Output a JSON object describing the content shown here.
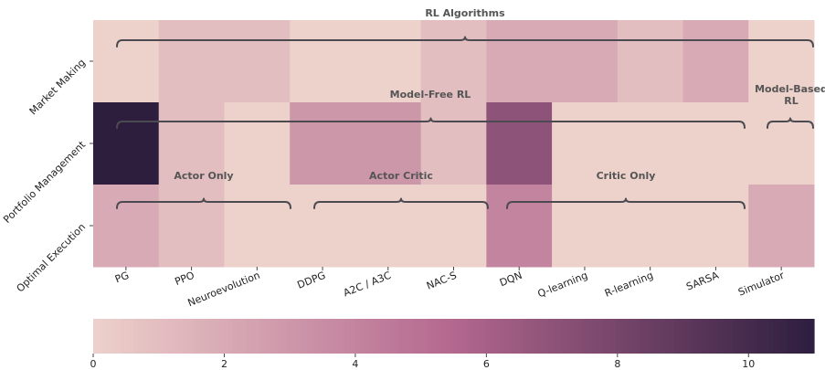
{
  "chart_data": {
    "type": "heatmap",
    "columns": [
      "PG",
      "PPO",
      "Neuroevolution",
      "DDPG",
      "A2C / A3C",
      "NAC-S",
      "DQN",
      "Q-learning",
      "R-learning",
      "SARSA",
      "Simulator"
    ],
    "rows": [
      "Market Making",
      "Portfolio Management",
      "Optimal Execution"
    ],
    "values": [
      [
        0,
        1,
        1,
        0,
        0,
        1,
        2,
        2,
        1,
        2,
        0
      ],
      [
        11,
        1,
        0,
        3,
        3,
        1,
        7,
        0,
        0,
        0,
        0
      ],
      [
        2,
        1,
        0,
        0,
        0,
        0,
        4,
        0,
        0,
        0,
        2
      ]
    ],
    "colorbar": {
      "min": 0,
      "max": 11,
      "ticks": [
        0,
        2,
        4,
        6,
        8,
        10
      ]
    },
    "colors": {
      "low": "#edd1cb",
      "mid": "#b3678e",
      "high": "#2d1e3e",
      "brace": "#4a4a50",
      "annotation": "#555555"
    },
    "annotations": [
      {
        "text": "RL Algorithms",
        "span": [
          "PG",
          "Simulator"
        ]
      },
      {
        "text": "Model-Free RL",
        "span": [
          "PG",
          "SARSA"
        ]
      },
      {
        "text": "Model-Based RL",
        "lines": [
          "Model-Based",
          "RL"
        ],
        "span": [
          "Simulator",
          "Simulator"
        ]
      },
      {
        "text": "Actor Only",
        "span": [
          "PG",
          "Neuroevolution"
        ]
      },
      {
        "text": "Actor Critic",
        "span": [
          "DDPG",
          "NAC-S"
        ]
      },
      {
        "text": "Critic Only",
        "span": [
          "DQN",
          "SARSA"
        ]
      }
    ]
  }
}
